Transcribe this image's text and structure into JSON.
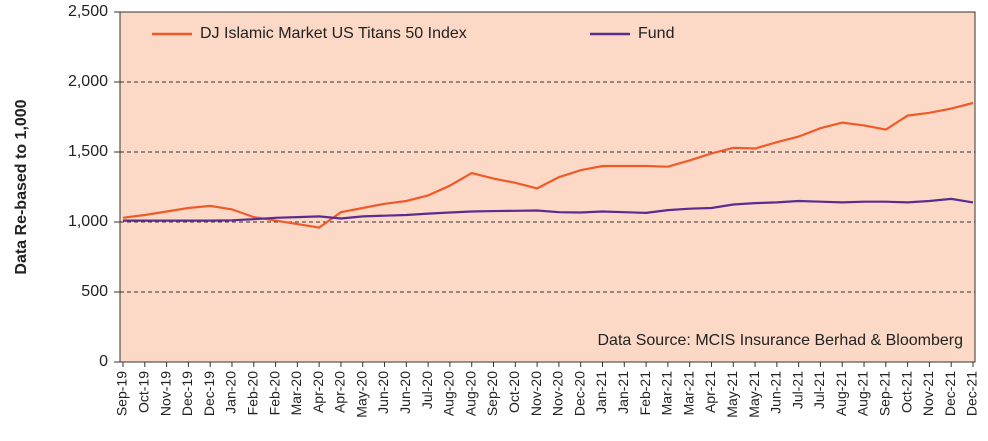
{
  "chart_data": {
    "type": "line",
    "y_label": "Data Re-based to 1,000",
    "annotation": "Data Source: MCIS Insurance Berhad & Bloomberg",
    "categories": [
      "Sep-19",
      "Oct-19",
      "Nov-19",
      "Dec-19",
      "Dec-19",
      "Jan-20",
      "Feb-20",
      "Feb-20",
      "Mar-20",
      "Apr-20",
      "Apr-20",
      "May-20",
      "Jun-20",
      "Jun-20",
      "Jul-20",
      "Aug-20",
      "Aug-20",
      "Sep-20",
      "Oct-20",
      "Nov-20",
      "Nov-20",
      "Dec-20",
      "Jan-21",
      "Jan-21",
      "Feb-21",
      "Mar-21",
      "Mar-21",
      "Apr-21",
      "May-21",
      "May-21",
      "Jun-21",
      "Jul-21",
      "Jul-21",
      "Aug-21",
      "Aug-21",
      "Sep-21",
      "Oct-21",
      "Nov-21",
      "Dec-21",
      "Dec-21"
    ],
    "series": [
      {
        "name": "DJ Islamic Market US Titans 50 Index",
        "color": "#f05a28",
        "values": [
          1030,
          1050,
          1075,
          1100,
          1115,
          1090,
          1035,
          1010,
          985,
          960,
          1070,
          1100,
          1130,
          1150,
          1190,
          1260,
          1350,
          1310,
          1280,
          1240,
          1320,
          1370,
          1400,
          1400,
          1400,
          1395,
          1440,
          1490,
          1530,
          1525,
          1570,
          1610,
          1670,
          1710,
          1690,
          1660,
          1760,
          1780,
          1810,
          1850
        ]
      },
      {
        "name": "Fund",
        "color": "#5b2c8f",
        "values": [
          1010,
          1010,
          1010,
          1010,
          1010,
          1012,
          1020,
          1030,
          1035,
          1040,
          1025,
          1040,
          1045,
          1050,
          1060,
          1068,
          1075,
          1078,
          1080,
          1082,
          1070,
          1068,
          1075,
          1070,
          1065,
          1085,
          1095,
          1100,
          1125,
          1135,
          1140,
          1150,
          1145,
          1140,
          1145,
          1145,
          1140,
          1150,
          1165,
          1140
        ]
      }
    ],
    "ylim": [
      0,
      2500
    ],
    "yticks": [
      0,
      500,
      {
        "value": 1000,
        "label": "1,000"
      },
      {
        "value": 1500,
        "label": "1,500"
      },
      {
        "value": 2000,
        "label": "2,000"
      },
      {
        "value": 2500,
        "label": "2,500"
      }
    ],
    "grid": true,
    "legend": "top-left",
    "background": "#fbd9c6"
  }
}
